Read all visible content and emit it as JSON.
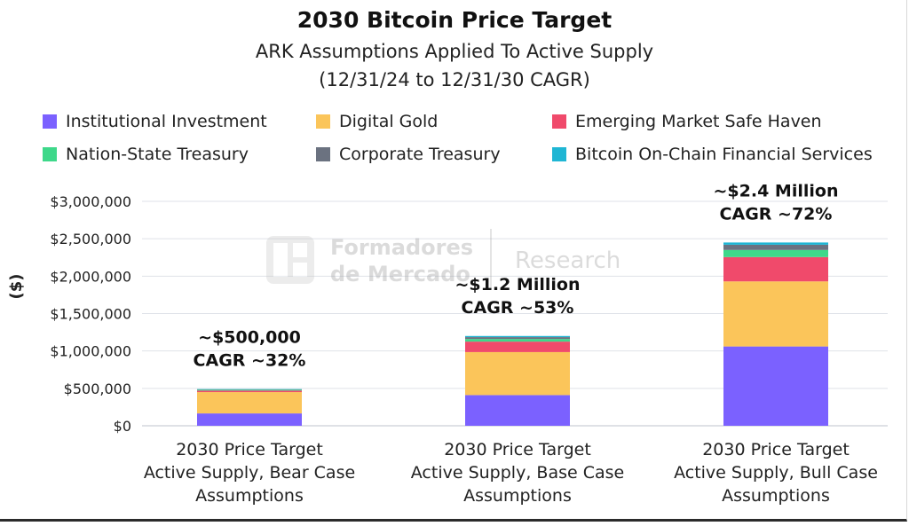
{
  "title": "2030 Bitcoin Price Target",
  "subtitle_line1": "ARK Assumptions Applied To Active Supply",
  "subtitle_line2": "(12/31/24 to 12/31/30 CAGR)",
  "watermark": {
    "brand_line1": "Formadores",
    "brand_line2": "de Mercado",
    "section": "Research"
  },
  "colors": {
    "Institutional Investment": "#7b61ff",
    "Digital Gold": "#fbc55a",
    "Emerging Market Safe Haven": "#f04a6b",
    "Nation-State Treasury": "#3ed88a",
    "Corporate Treasury": "#6b7280",
    "Bitcoin On-Chain Financial Services": "#1fb6d4"
  },
  "chart_data": {
    "type": "bar",
    "stacked": true,
    "ylabel": "($)",
    "xlabel": "",
    "ylim": [
      0,
      3000000
    ],
    "yticks": [
      "$0",
      "$500,000",
      "$1,000,000",
      "$1,500,000",
      "$2,000,000",
      "$2,500,000",
      "$3,000,000"
    ],
    "ytick_values": [
      0,
      500000,
      1000000,
      1500000,
      2000000,
      2500000,
      3000000
    ],
    "grid": true,
    "legend_position": "top",
    "categories": [
      [
        "2030 Price Target",
        "Active Supply, Bear Case",
        "Assumptions"
      ],
      [
        "2030 Price Target",
        "Active Supply, Base Case",
        "Assumptions"
      ],
      [
        "2030 Price Target",
        "Active Supply, Bull Case",
        "Assumptions"
      ]
    ],
    "series": [
      {
        "name": "Institutional Investment",
        "values": [
          165000,
          410000,
          1060000
        ]
      },
      {
        "name": "Digital Gold",
        "values": [
          285000,
          575000,
          870000
        ]
      },
      {
        "name": "Emerging Market Safe Haven",
        "values": [
          20000,
          140000,
          325000
        ]
      },
      {
        "name": "Nation-State Treasury",
        "values": [
          10000,
          35000,
          95000
        ]
      },
      {
        "name": "Corporate Treasury",
        "values": [
          5000,
          25000,
          70000
        ]
      },
      {
        "name": "Bitcoin On-Chain Financial Services",
        "values": [
          5000,
          15000,
          30000
        ]
      }
    ],
    "annotations": [
      [
        "~$500,000",
        "CAGR ~32%"
      ],
      [
        "~$1.2 Million",
        "CAGR ~53%"
      ],
      [
        "~$2.4 Million",
        "CAGR ~72%"
      ]
    ]
  }
}
